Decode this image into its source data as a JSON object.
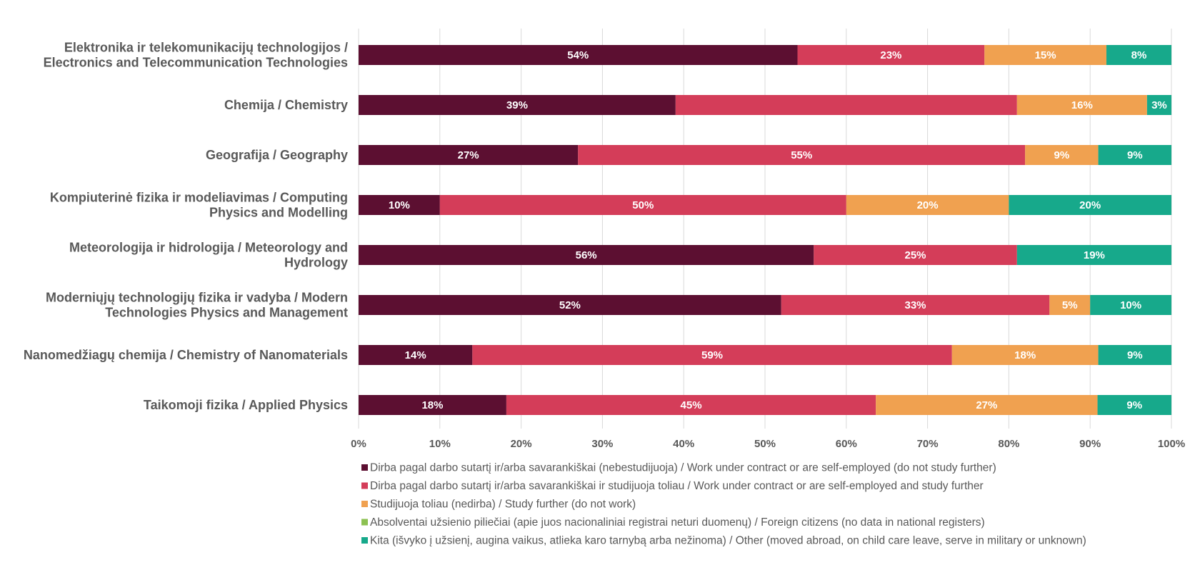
{
  "chart_data": {
    "type": "bar",
    "orientation": "horizontal",
    "stacked": true,
    "percent": true,
    "categories": [
      [
        "Elektronika ir telekomunikacijų technologijos /",
        "Electronics and Telecommunication Technologies"
      ],
      [
        "Chemija / Chemistry"
      ],
      [
        "Geografija / Geography"
      ],
      [
        "Kompiuterinė fizika ir modeliavimas / Computing",
        "Physics and Modelling"
      ],
      [
        "Meteorologija ir hidrologija / Meteorology and",
        "Hydrology"
      ],
      [
        "Moderniųjų technologijų fizika ir vadyba / Modern",
        "Technologies Physics and Management"
      ],
      [
        "Nanomedžiagų chemija / Chemistry of Nanomaterials"
      ],
      [
        "Taikomoji fizika / Applied Physics"
      ]
    ],
    "series": [
      {
        "name": "Dirba pagal darbo sutartį ir/arba savarankiškai (nebestudijuoja) / Work under contract or are self-employed (do not study further)",
        "color": "#5c0f31",
        "values": [
          54,
          39,
          27,
          10,
          56,
          52,
          14,
          18
        ]
      },
      {
        "name": "Dirba pagal darbo sutartį ir/arba savarankiškai  ir studijuoja toliau / Work under contract or are self-employed and study further",
        "color": "#d43d59",
        "values": [
          23,
          42,
          55,
          50,
          25,
          33,
          59,
          45
        ]
      },
      {
        "name": "Studijuoja toliau (nedirba) / Study further (do not work)",
        "color": "#f0a150",
        "values": [
          15,
          16,
          9,
          20,
          0,
          5,
          18,
          27
        ]
      },
      {
        "name": "Absolventai užsienio piliečiai (apie juos nacionaliniai registrai neturi duomenų) / Foreign citizens (no data in national registers)",
        "color": "#8cc152",
        "values": [
          0,
          0,
          0,
          0,
          0,
          0,
          0,
          0
        ]
      },
      {
        "name": "Kita (išvyko į užsienį, augina vaikus, atlieka karo tarnybą arba nežinoma) / Other (moved abroad, on child care leave, serve in military or unknown)",
        "color": "#17a98b",
        "values": [
          8,
          3,
          9,
          20,
          19,
          10,
          9,
          9
        ]
      }
    ],
    "data_labels": [
      [
        "54%",
        "23%",
        "15%",
        null,
        "8%"
      ],
      [
        "39%",
        "",
        "16%",
        null,
        "3%"
      ],
      [
        "27%",
        "55%",
        "9%",
        null,
        "9%"
      ],
      [
        "10%",
        "50%",
        "20%",
        null,
        "20%"
      ],
      [
        "56%",
        "25%",
        null,
        null,
        "19%"
      ],
      [
        "52%",
        "33%",
        "5%",
        null,
        "10%"
      ],
      [
        "14%",
        "59%",
        "18%",
        null,
        "9%"
      ],
      [
        "18%",
        "45%",
        "27%",
        null,
        "9%"
      ]
    ],
    "xticks": [
      "0%",
      "10%",
      "20%",
      "30%",
      "40%",
      "50%",
      "60%",
      "70%",
      "80%",
      "90%",
      "100%"
    ],
    "xlim": [
      0,
      100
    ],
    "grid": true,
    "legend_position": "bottom"
  }
}
